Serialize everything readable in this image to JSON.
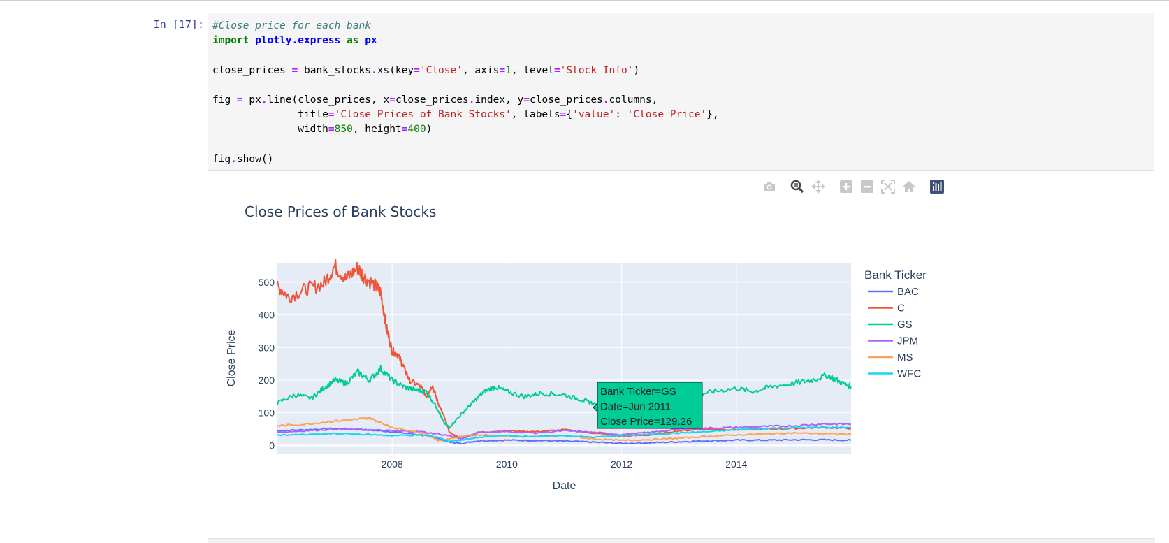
{
  "cell": {
    "prompt": "In [17]:",
    "code_lines": [
      "#Close price for each bank",
      "import plotly.express as px",
      "",
      "close_prices = bank_stocks.xs(key='Close', axis=1, level='Stock Info')",
      "",
      "fig = px.line(close_prices, x=close_prices.index, y=close_prices.columns,",
      "              title='Close Prices of Bank Stocks', labels={'value': 'Close Price'},",
      "              width=850, height=400)",
      "",
      "fig.show()"
    ]
  },
  "modebar": {
    "icons": [
      "camera-icon",
      "zoom-icon",
      "pan-icon",
      "zoom-in-icon",
      "zoom-out-icon",
      "autoscale-icon",
      "reset-axes-icon",
      "plotly-logo-icon"
    ],
    "active_color": "#444444",
    "inactive_color": "#c8c8c8"
  },
  "hover": {
    "lines": [
      "Bank Ticker=GS",
      "Date=Jun 2011",
      "Close Price=129.26"
    ],
    "bg_color": "#00cc96"
  },
  "chart_data": {
    "type": "line",
    "title": "Close Prices of Bank Stocks",
    "xlabel": "Date",
    "ylabel": "Close Price",
    "legend_title": "Bank Ticker",
    "legend_position": "right",
    "grid": true,
    "plot_bg": "#e5ecf6",
    "xlim": [
      2006.0,
      2016.0
    ],
    "ylim": [
      -25,
      560
    ],
    "x_ticks": [
      2008,
      2010,
      2012,
      2014
    ],
    "x_tick_labels": [
      "2008",
      "2010",
      "2012",
      "2014"
    ],
    "y_ticks": [
      0,
      100,
      200,
      300,
      400,
      500
    ],
    "y_tick_labels": [
      "0",
      "100",
      "200",
      "300",
      "400",
      "500"
    ],
    "series": [
      {
        "name": "BAC",
        "color": "#636efa",
        "x": [
          2006.0,
          2006.5,
          2007.0,
          2007.5,
          2008.0,
          2008.5,
          2008.8,
          2009.0,
          2009.2,
          2009.5,
          2010.0,
          2010.5,
          2011.0,
          2011.5,
          2012.0,
          2012.5,
          2013.0,
          2013.5,
          2014.0,
          2014.5,
          2015.0,
          2015.5,
          2016.0
        ],
        "y": [
          45,
          48,
          52,
          48,
          42,
          32,
          22,
          10,
          6,
          14,
          16,
          15,
          13,
          10,
          6,
          8,
          11,
          14,
          16,
          16,
          17,
          17,
          16
        ]
      },
      {
        "name": "C",
        "color": "#ef553b",
        "x": [
          2006.0,
          2006.2,
          2006.5,
          2006.8,
          2007.0,
          2007.2,
          2007.4,
          2007.5,
          2007.7,
          2007.8,
          2007.9,
          2008.0,
          2008.1,
          2008.2,
          2008.3,
          2008.5,
          2008.6,
          2008.7,
          2008.8,
          2008.9,
          2009.0,
          2009.2,
          2009.5,
          2010.0,
          2010.5,
          2011.0,
          2011.5,
          2012.0,
          2012.5,
          2013.0,
          2013.5,
          2014.0,
          2014.5,
          2015.0,
          2015.5,
          2016.0
        ],
        "y": [
          490,
          455,
          480,
          495,
          550,
          510,
          545,
          520,
          490,
          470,
          360,
          290,
          280,
          240,
          200,
          180,
          150,
          185,
          130,
          90,
          40,
          20,
          40,
          45,
          42,
          48,
          38,
          28,
          32,
          45,
          50,
          48,
          50,
          52,
          55,
          52
        ]
      },
      {
        "name": "GS",
        "color": "#00cc96",
        "x": [
          2006.0,
          2006.3,
          2006.6,
          2006.8,
          2007.0,
          2007.2,
          2007.4,
          2007.6,
          2007.8,
          2008.0,
          2008.2,
          2008.4,
          2008.6,
          2008.8,
          2008.9,
          2009.0,
          2009.2,
          2009.4,
          2009.6,
          2009.8,
          2010.0,
          2010.3,
          2010.6,
          2011.0,
          2011.3,
          2011.5,
          2011.8,
          2012.0,
          2012.3,
          2012.6,
          2013.0,
          2013.3,
          2013.6,
          2014.0,
          2014.3,
          2014.6,
          2015.0,
          2015.3,
          2015.6,
          2015.8,
          2016.0
        ],
        "y": [
          130,
          155,
          145,
          175,
          200,
          190,
          225,
          200,
          235,
          200,
          180,
          170,
          165,
          110,
          70,
          55,
          95,
          130,
          165,
          180,
          165,
          150,
          160,
          155,
          140,
          129,
          110,
          95,
          100,
          125,
          160,
          155,
          165,
          175,
          165,
          180,
          190,
          200,
          215,
          195,
          180
        ]
      },
      {
        "name": "JPM",
        "color": "#ab63fa",
        "x": [
          2006.0,
          2006.5,
          2007.0,
          2007.5,
          2008.0,
          2008.5,
          2009.0,
          2009.2,
          2009.5,
          2010.0,
          2010.5,
          2011.0,
          2011.5,
          2012.0,
          2012.5,
          2013.0,
          2013.5,
          2014.0,
          2014.5,
          2015.0,
          2015.5,
          2016.0
        ],
        "y": [
          40,
          45,
          50,
          48,
          45,
          42,
          30,
          20,
          40,
          42,
          38,
          45,
          40,
          33,
          40,
          50,
          53,
          55,
          58,
          60,
          66,
          65
        ]
      },
      {
        "name": "MS",
        "color": "#ffa15a",
        "x": [
          2006.0,
          2006.5,
          2007.0,
          2007.4,
          2007.6,
          2007.8,
          2008.0,
          2008.3,
          2008.6,
          2008.8,
          2009.0,
          2009.3,
          2009.6,
          2010.0,
          2010.5,
          2011.0,
          2011.5,
          2012.0,
          2012.5,
          2013.0,
          2013.5,
          2014.0,
          2014.5,
          2015.0,
          2015.5,
          2016.0
        ],
        "y": [
          60,
          65,
          75,
          80,
          85,
          70,
          55,
          45,
          35,
          15,
          20,
          30,
          32,
          28,
          26,
          30,
          20,
          15,
          18,
          22,
          28,
          32,
          35,
          38,
          36,
          34
        ]
      },
      {
        "name": "WFC",
        "color": "#19d3f3",
        "x": [
          2006.0,
          2006.5,
          2007.0,
          2007.5,
          2008.0,
          2008.5,
          2008.8,
          2009.0,
          2009.3,
          2009.6,
          2010.0,
          2010.5,
          2011.0,
          2011.5,
          2012.0,
          2012.5,
          2013.0,
          2013.5,
          2014.0,
          2014.5,
          2015.0,
          2015.5,
          2016.0
        ],
        "y": [
          32,
          33,
          36,
          34,
          30,
          32,
          25,
          12,
          18,
          27,
          30,
          27,
          30,
          25,
          30,
          34,
          38,
          42,
          48,
          52,
          54,
          55,
          55
        ]
      }
    ]
  }
}
